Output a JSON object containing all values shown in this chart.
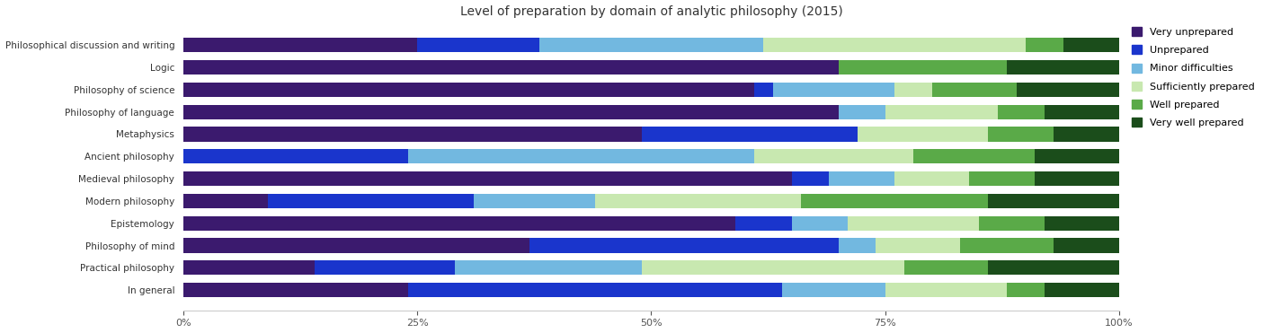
{
  "title": "Level of preparation by domain of analytic philosophy (2015)",
  "categories": [
    "Philosophical discussion and writing",
    "Logic",
    "Philosophy of science",
    "Philosophy of language",
    "Metaphysics",
    "Ancient philosophy",
    "Medieval philosophy",
    "Modern philosophy",
    "Epistemology",
    "Philosophy of mind",
    "Practical philosophy",
    "In general"
  ],
  "legend_labels": [
    "Very unprepared",
    "Unprepared",
    "Minor difficulties",
    "Sufficiently prepared",
    "Well prepared",
    "Very well prepared"
  ],
  "colors": [
    "#3b1a6e",
    "#1a35cc",
    "#72b8e0",
    "#c8e8b0",
    "#5aaa48",
    "#1b4d1b"
  ],
  "data": [
    [
      25,
      13,
      24,
      28,
      4,
      6
    ],
    [
      70,
      0,
      0,
      0,
      18,
      12
    ],
    [
      61,
      2,
      13,
      4,
      9,
      11
    ],
    [
      70,
      0,
      5,
      12,
      5,
      8
    ],
    [
      49,
      23,
      0,
      14,
      7,
      7
    ],
    [
      0,
      24,
      37,
      17,
      13,
      9
    ],
    [
      65,
      4,
      7,
      8,
      7,
      9
    ],
    [
      9,
      22,
      13,
      22,
      20,
      14
    ],
    [
      59,
      6,
      6,
      14,
      7,
      8
    ],
    [
      37,
      33,
      4,
      9,
      10,
      7
    ],
    [
      14,
      15,
      20,
      28,
      9,
      14
    ],
    [
      24,
      40,
      11,
      13,
      4,
      8
    ]
  ],
  "figsize": [
    14.05,
    3.71
  ],
  "dpi": 100,
  "bar_height": 0.65,
  "bg_color": "#ffffff"
}
